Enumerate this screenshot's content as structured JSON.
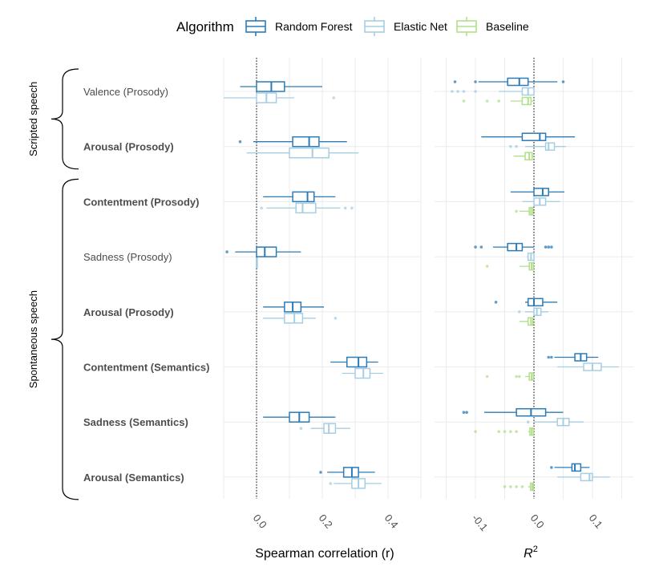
{
  "legend": {
    "title": "Algorithm",
    "items": [
      {
        "label": "Random Forest",
        "color": "#2c7bb6"
      },
      {
        "label": "Elastic Net",
        "color": "#a6cee3"
      },
      {
        "label": "Baseline",
        "color": "#b2df8a"
      }
    ]
  },
  "groups": [
    {
      "label": "Scripted speech",
      "rows": [
        0,
        1
      ]
    },
    {
      "label": "Spontaneous speech",
      "rows": [
        2,
        7
      ]
    }
  ],
  "chart_data": [
    {
      "type": "boxplot",
      "xlabel": "Spearman correlation (r)",
      "xlim": [
        -0.1,
        0.5
      ],
      "xticks": [
        0.0,
        0.2,
        0.4
      ],
      "xtick_labels": [
        "0.0",
        "0.2",
        "0.4"
      ],
      "reference_line": 0,
      "grid": true,
      "categories": [
        {
          "label": "Valence (Prosody)",
          "bold": false
        },
        {
          "label": "Arousal (Prosody)",
          "bold": true
        },
        {
          "label": "Contentment (Prosody)",
          "bold": true
        },
        {
          "label": "Sadness (Prosody)",
          "bold": false
        },
        {
          "label": "Arousal (Prosody)",
          "bold": true
        },
        {
          "label": "Contentment (Semantics)",
          "bold": true
        },
        {
          "label": "Sadness (Semantics)",
          "bold": true
        },
        {
          "label": "Arousal (Semantics)",
          "bold": true
        }
      ],
      "series": [
        {
          "name": "Random Forest",
          "boxes": [
            {
              "min": -0.05,
              "q1": 0.0,
              "median": 0.045,
              "q3": 0.085,
              "max": 0.2,
              "outliers": []
            },
            {
              "min": -0.01,
              "q1": 0.11,
              "median": 0.16,
              "q3": 0.19,
              "max": 0.275,
              "outliers": [
                -0.05
              ]
            },
            {
              "min": 0.02,
              "q1": 0.11,
              "median": 0.155,
              "q3": 0.175,
              "max": 0.24,
              "outliers": []
            },
            {
              "min": -0.065,
              "q1": 0.0,
              "median": 0.025,
              "q3": 0.06,
              "max": 0.135,
              "outliers": [
                -0.09
              ]
            },
            {
              "min": 0.02,
              "q1": 0.085,
              "median": 0.11,
              "q3": 0.135,
              "max": 0.205,
              "outliers": []
            },
            {
              "min": 0.225,
              "q1": 0.275,
              "median": 0.31,
              "q3": 0.335,
              "max": 0.37,
              "outliers": []
            },
            {
              "min": 0.02,
              "q1": 0.1,
              "median": 0.13,
              "q3": 0.16,
              "max": 0.24,
              "outliers": []
            },
            {
              "min": 0.215,
              "q1": 0.265,
              "median": 0.29,
              "q3": 0.31,
              "max": 0.36,
              "outliers": [
                0.195
              ]
            }
          ]
        },
        {
          "name": "Elastic Net",
          "boxes": [
            {
              "min": -0.1,
              "q1": 0.0,
              "median": 0.03,
              "q3": 0.06,
              "max": 0.115,
              "outliers": [
                0.235
              ]
            },
            {
              "min": -0.03,
              "q1": 0.1,
              "median": 0.17,
              "q3": 0.22,
              "max": 0.31,
              "outliers": []
            },
            {
              "min": 0.03,
              "q1": 0.12,
              "median": 0.14,
              "q3": 0.18,
              "max": 0.255,
              "outliers": [
                0.015,
                0.27,
                0.29
              ]
            },
            {
              "min": 0.0,
              "q1": 0.0,
              "median": 0.0,
              "q3": 0.0,
              "max": 0.0,
              "outliers": []
            },
            {
              "min": 0.02,
              "q1": 0.085,
              "median": 0.115,
              "q3": 0.14,
              "max": 0.18,
              "outliers": [
                0.24
              ]
            },
            {
              "min": 0.26,
              "q1": 0.3,
              "median": 0.325,
              "q3": 0.345,
              "max": 0.385,
              "outliers": []
            },
            {
              "min": 0.165,
              "q1": 0.205,
              "median": 0.22,
              "q3": 0.24,
              "max": 0.285,
              "outliers": [
                0.135
              ]
            },
            {
              "min": 0.235,
              "q1": 0.29,
              "median": 0.31,
              "q3": 0.33,
              "max": 0.38,
              "outliers": [
                0.225
              ]
            }
          ]
        }
      ]
    },
    {
      "type": "boxplot",
      "xlabel": "R",
      "xlabel_superscript": "2",
      "xlim": [
        -0.17,
        0.17
      ],
      "xticks": [
        -0.1,
        0.0,
        0.1
      ],
      "xtick_labels": [
        "-0.1",
        "0.0",
        "0.1"
      ],
      "reference_line": 0,
      "grid": true,
      "series": [
        {
          "name": "Random Forest",
          "boxes": [
            {
              "min": -0.095,
              "q1": -0.045,
              "median": -0.025,
              "q3": -0.01,
              "max": 0.04,
              "outliers": [
                -0.135,
                -0.1,
                0.05
              ]
            },
            {
              "min": -0.09,
              "q1": -0.02,
              "median": 0.01,
              "q3": 0.02,
              "max": 0.07,
              "outliers": []
            },
            {
              "min": -0.04,
              "q1": 0.0,
              "median": 0.015,
              "q3": 0.025,
              "max": 0.052,
              "outliers": []
            },
            {
              "min": -0.07,
              "q1": -0.045,
              "median": -0.03,
              "q3": -0.02,
              "max": 0.0,
              "outliers": [
                -0.09,
                -0.1,
                0.02,
                0.025,
                0.03
              ]
            },
            {
              "min": -0.015,
              "q1": -0.01,
              "median": 0.0,
              "q3": 0.015,
              "max": 0.04,
              "outliers": [
                -0.065
              ]
            },
            {
              "min": 0.035,
              "q1": 0.07,
              "median": 0.08,
              "q3": 0.09,
              "max": 0.11,
              "outliers": [
                0.025,
                0.03
              ]
            },
            {
              "min": -0.085,
              "q1": -0.03,
              "median": -0.005,
              "q3": 0.02,
              "max": 0.05,
              "outliers": [
                -0.12,
                -0.115
              ]
            },
            {
              "min": 0.035,
              "q1": 0.065,
              "median": 0.07,
              "q3": 0.08,
              "max": 0.095,
              "outliers": [
                0.03
              ]
            }
          ]
        },
        {
          "name": "Elastic Net",
          "boxes": [
            {
              "min": -0.06,
              "q1": -0.02,
              "median": -0.01,
              "q3": 0.0,
              "max": 0.0,
              "outliers": [
                -0.14,
                -0.13,
                -0.12,
                -0.1
              ]
            },
            {
              "min": -0.015,
              "q1": 0.02,
              "median": 0.025,
              "q3": 0.035,
              "max": 0.055,
              "outliers": [
                -0.04,
                -0.03
              ]
            },
            {
              "min": -0.02,
              "q1": 0.0,
              "median": 0.01,
              "q3": 0.02,
              "max": 0.045,
              "outliers": []
            },
            {
              "min": -0.012,
              "q1": -0.01,
              "median": -0.005,
              "q3": 0.0,
              "max": 0.0,
              "outliers": []
            },
            {
              "min": -0.015,
              "q1": 0.0,
              "median": 0.005,
              "q3": 0.012,
              "max": 0.025,
              "outliers": [
                -0.025
              ]
            },
            {
              "min": 0.04,
              "q1": 0.085,
              "median": 0.1,
              "q3": 0.115,
              "max": 0.145,
              "outliers": []
            },
            {
              "min": 0.0,
              "q1": 0.04,
              "median": 0.05,
              "q3": 0.06,
              "max": 0.085,
              "outliers": [
                -0.01
              ]
            },
            {
              "min": 0.04,
              "q1": 0.08,
              "median": 0.095,
              "q3": 0.1,
              "max": 0.13,
              "outliers": []
            }
          ]
        },
        {
          "name": "Baseline",
          "boxes": [
            {
              "min": -0.04,
              "q1": -0.02,
              "median": -0.01,
              "q3": -0.005,
              "max": 0.0,
              "outliers": [
                -0.12,
                -0.08,
                -0.06
              ]
            },
            {
              "min": -0.035,
              "q1": -0.015,
              "median": -0.008,
              "q3": -0.003,
              "max": 0.0,
              "outliers": []
            },
            {
              "min": -0.025,
              "q1": -0.008,
              "median": -0.005,
              "q3": -0.002,
              "max": 0.0,
              "outliers": [
                -0.03
              ]
            },
            {
              "min": -0.025,
              "q1": -0.008,
              "median": -0.004,
              "q3": -0.001,
              "max": 0.0,
              "outliers": [
                -0.08
              ]
            },
            {
              "min": -0.025,
              "q1": -0.01,
              "median": -0.005,
              "q3": -0.002,
              "max": 0.0,
              "outliers": []
            },
            {
              "min": -0.015,
              "q1": -0.008,
              "median": -0.004,
              "q3": -0.001,
              "max": 0.0,
              "outliers": [
                -0.08,
                -0.03,
                -0.025
              ]
            },
            {
              "min": -0.01,
              "q1": -0.007,
              "median": -0.004,
              "q3": -0.001,
              "max": 0.0,
              "outliers": [
                -0.1,
                -0.06,
                -0.05,
                -0.04,
                -0.03
              ]
            },
            {
              "min": -0.01,
              "q1": -0.006,
              "median": -0.003,
              "q3": -0.001,
              "max": 0.0,
              "outliers": [
                -0.05,
                -0.04,
                -0.03,
                -0.02
              ]
            }
          ]
        }
      ]
    }
  ]
}
